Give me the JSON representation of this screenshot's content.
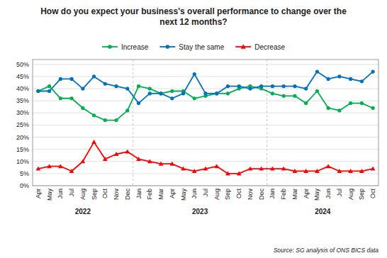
{
  "chart_data": {
    "type": "line",
    "title": "How do you expect your business's overall performance to change over the\nnext 12 months?",
    "source": "Source: SG analysis of ONS BICS data",
    "categories": [
      "Apr",
      "May",
      "Jun",
      "Jul",
      "Aug",
      "Sep",
      "Oct",
      "Nov",
      "Dec",
      "Jan",
      "Feb",
      "Mar",
      "Apr",
      "May",
      "Jun",
      "Jul",
      "Aug",
      "Sep",
      "Oct",
      "Nov",
      "Dec",
      "Jan",
      "Feb",
      "Mar",
      "Apr",
      "May",
      "Jun",
      "Jul",
      "Aug",
      "Sep",
      "Oct"
    ],
    "series": [
      {
        "name": "Increase",
        "color": "#00b050",
        "marker": "circle",
        "values": [
          39,
          41,
          36,
          36,
          32,
          29,
          27,
          27,
          31,
          41,
          40,
          38,
          39,
          39,
          36,
          37,
          38,
          38,
          40,
          41,
          40,
          38,
          37,
          37,
          34,
          39,
          32,
          31,
          34,
          34,
          32
        ]
      },
      {
        "name": "Stay the same",
        "color": "#0070c0",
        "marker": "circle",
        "values": [
          39,
          39,
          44,
          44,
          40,
          45,
          42,
          41,
          40,
          34,
          38,
          38,
          36,
          38,
          46,
          38,
          38,
          41,
          41,
          40,
          41,
          41,
          41,
          41,
          40,
          47,
          44,
          45,
          44,
          43,
          47
        ]
      },
      {
        "name": "Decrease",
        "color": "#ff0000",
        "marker": "triangle",
        "values": [
          7,
          8,
          8,
          6,
          10,
          18,
          11,
          13,
          14,
          11,
          10,
          9,
          9,
          7,
          6,
          7,
          8,
          5,
          5,
          7,
          7,
          7,
          7,
          6,
          6,
          6,
          8,
          6,
          6,
          6,
          7
        ]
      }
    ],
    "annotations": [
      {
        "text": "2022",
        "from": 0,
        "to": 8
      },
      {
        "text": "2023",
        "from": 9,
        "to": 20
      },
      {
        "text": "2024",
        "from": 21,
        "to": 30
      }
    ],
    "ylim": [
      0,
      52
    ],
    "yticks": [
      {
        "value": 0,
        "label": "0%"
      },
      {
        "value": 5,
        "label": "5%"
      },
      {
        "value": 10,
        "label": "10%"
      },
      {
        "value": 15,
        "label": "15%"
      },
      {
        "value": 20,
        "label": "20%"
      },
      {
        "value": 25,
        "label": "25%"
      },
      {
        "value": 30,
        "label": "30%"
      },
      {
        "value": 35,
        "label": "35%"
      },
      {
        "value": 40,
        "label": "40%"
      },
      {
        "value": 45,
        "label": "45%"
      },
      {
        "value": 50,
        "label": "50%"
      }
    ],
    "grid": true,
    "legend": "top"
  }
}
